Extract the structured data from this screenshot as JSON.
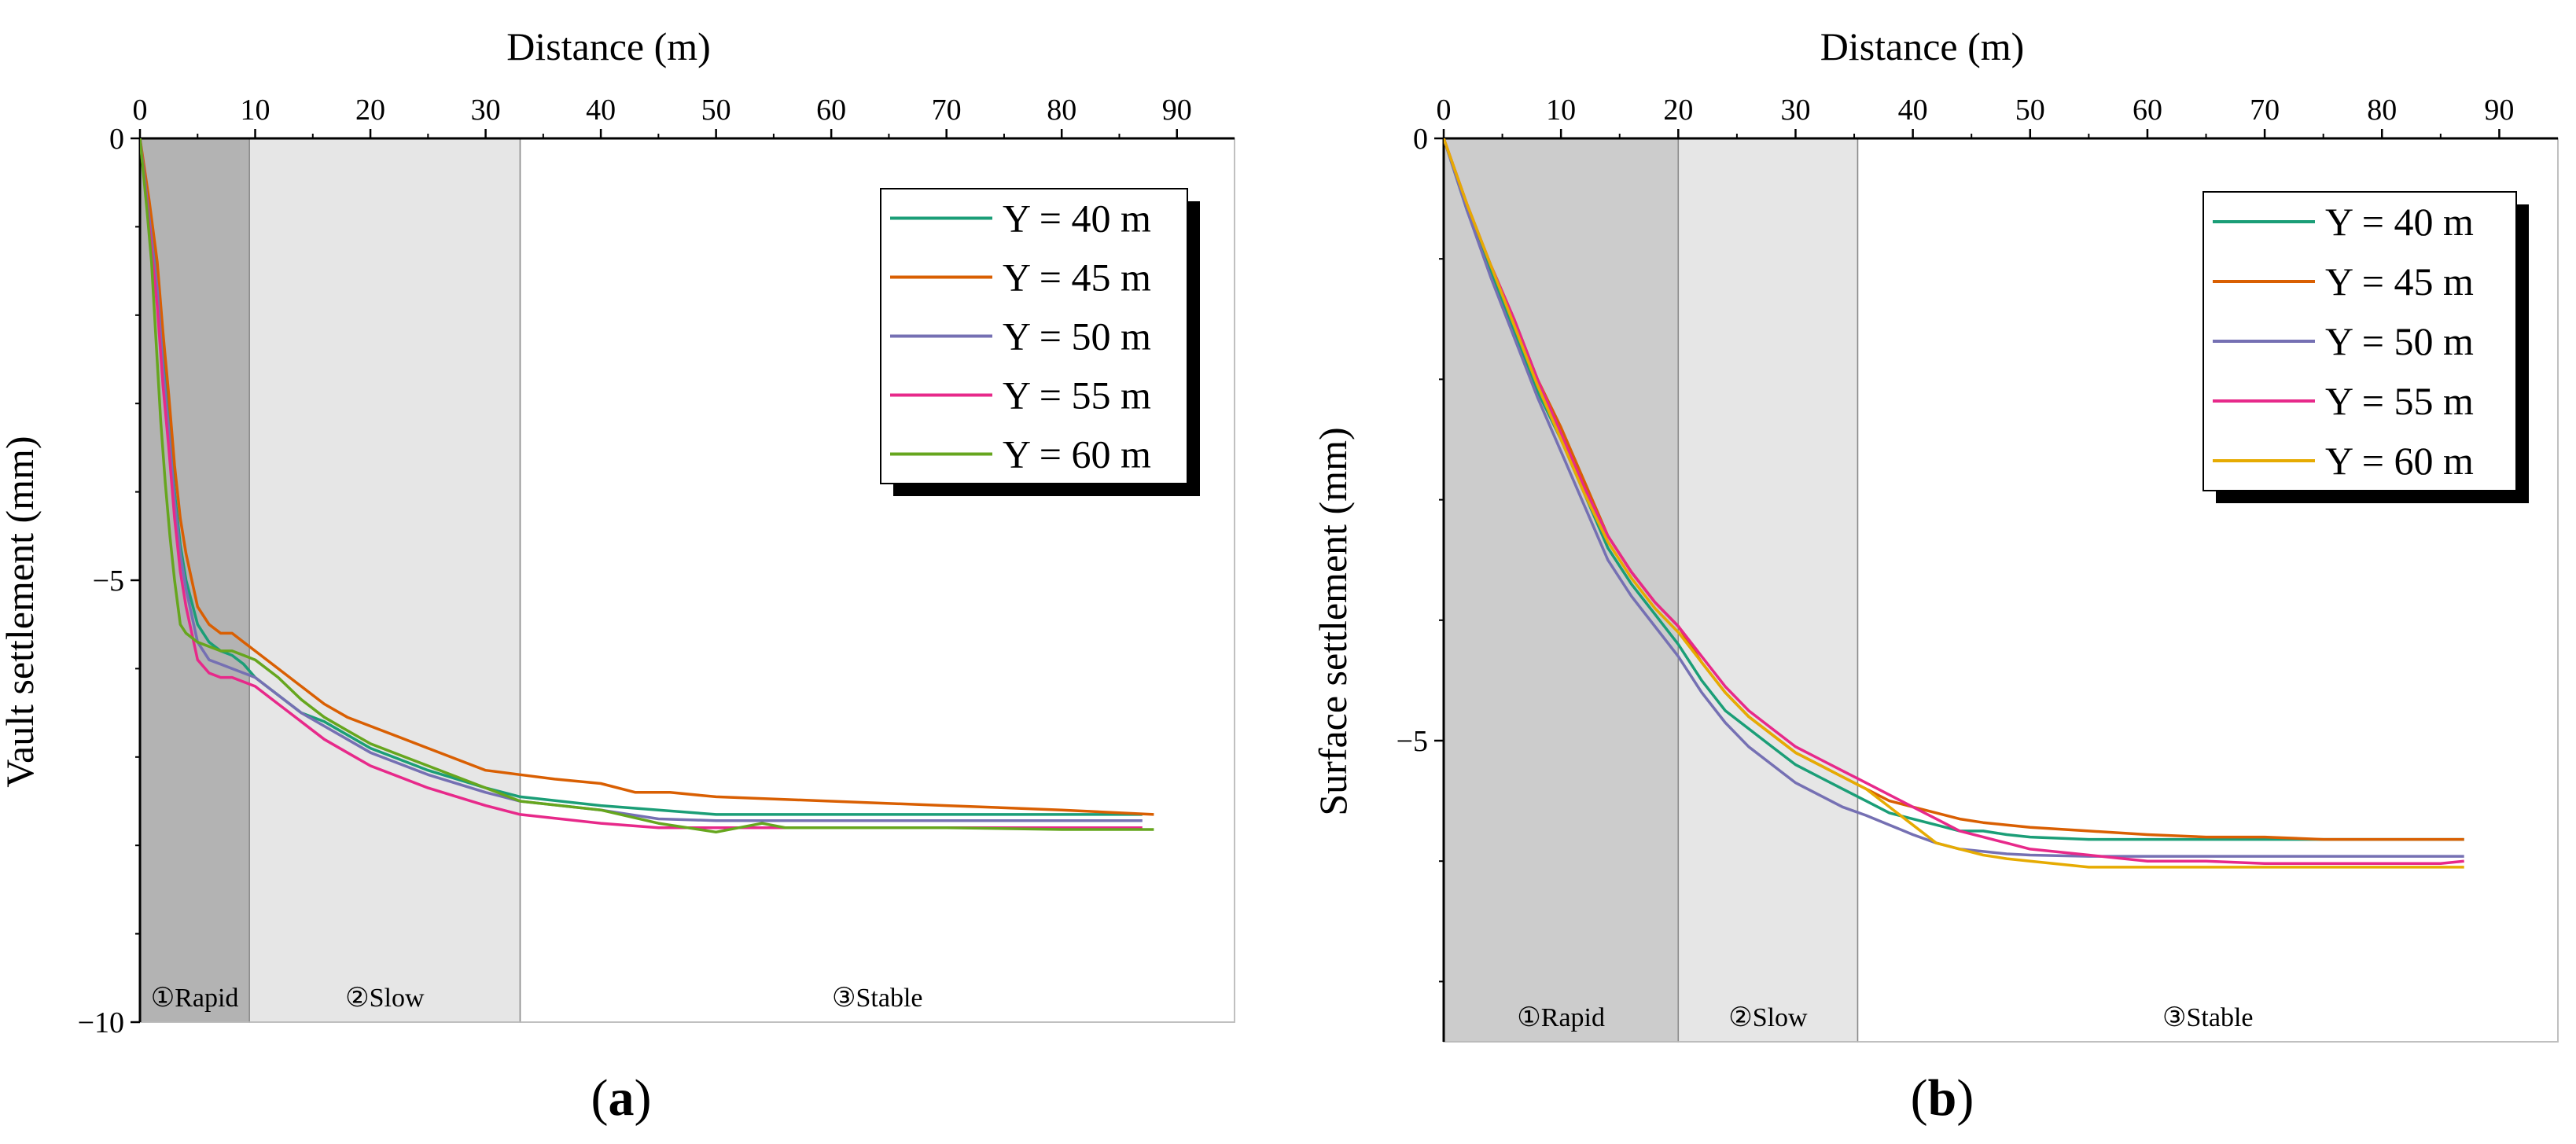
{
  "figure": {
    "panels": [
      {
        "label_text": "(a)",
        "label_letter": "a",
        "zones": [
          {
            "label": "①Rapid",
            "from": 0,
            "to": 9.5,
            "color": "#b3b3b3"
          },
          {
            "label": "②Slow",
            "from": 9.5,
            "to": 33,
            "color": "#e6e6e6"
          },
          {
            "label": "③Stable",
            "from": 33,
            "to": 95,
            "color": "#ffffff"
          }
        ]
      },
      {
        "label_text": "(b)",
        "label_letter": "b",
        "zones": [
          {
            "label": "①Rapid",
            "from": 0,
            "to": 20,
            "color": "#cccccc"
          },
          {
            "label": "②Slow",
            "from": 20,
            "to": 35.3,
            "color": "#e6e6e6"
          },
          {
            "label": "③Stable",
            "from": 35.3,
            "to": 95,
            "color": "#ffffff"
          }
        ]
      }
    ]
  },
  "chart_data": [
    {
      "type": "line",
      "title": "",
      "xlabel": "Distance (m)",
      "ylabel": "Vault settlement (mm)",
      "xlim": [
        0,
        95
      ],
      "ylim": [
        -10,
        0
      ],
      "xticks": [
        0,
        10,
        20,
        30,
        40,
        50,
        60,
        70,
        80,
        90
      ],
      "yticks": [
        0,
        -5,
        -10
      ],
      "ytick_labels": [
        "0",
        "−5",
        "−10"
      ],
      "x_axis_position": "top",
      "legend": "top-right",
      "series": [
        {
          "name": "Y = 40 m",
          "color": "#1b9e77",
          "x": [
            0,
            0.8,
            1.5,
            2.0,
            2.5,
            3.0,
            3.5,
            4.0,
            5.0,
            6.0,
            7.0,
            8.0,
            9.0,
            10,
            12,
            14,
            16,
            18,
            20,
            25,
            30,
            33,
            40,
            45,
            50,
            60,
            70,
            80,
            87
          ],
          "y": [
            0,
            -0.9,
            -1.6,
            -2.5,
            -3.2,
            -4.0,
            -4.6,
            -5.0,
            -5.5,
            -5.7,
            -5.8,
            -5.85,
            -5.95,
            -6.1,
            -6.3,
            -6.5,
            -6.6,
            -6.75,
            -6.9,
            -7.15,
            -7.35,
            -7.45,
            -7.55,
            -7.6,
            -7.65,
            -7.65,
            -7.65,
            -7.65,
            -7.65
          ]
        },
        {
          "name": "Y = 45 m",
          "color": "#d95f02",
          "x": [
            0,
            0.8,
            1.5,
            2.0,
            2.5,
            3.0,
            3.5,
            4.0,
            5.0,
            6.0,
            7.0,
            8.0,
            9.0,
            10,
            12,
            14,
            16,
            18,
            20,
            25,
            30,
            33,
            36,
            40,
            43,
            46,
            50,
            60,
            70,
            80,
            88
          ],
          "y": [
            0,
            -0.7,
            -1.4,
            -2.2,
            -2.9,
            -3.7,
            -4.3,
            -4.7,
            -5.3,
            -5.5,
            -5.6,
            -5.6,
            -5.7,
            -5.8,
            -6.0,
            -6.2,
            -6.4,
            -6.55,
            -6.65,
            -6.9,
            -7.15,
            -7.2,
            -7.25,
            -7.3,
            -7.4,
            -7.4,
            -7.45,
            -7.5,
            -7.55,
            -7.6,
            -7.65
          ]
        },
        {
          "name": "Y = 50 m",
          "color": "#7570b3",
          "x": [
            0,
            0.8,
            1.5,
            2.0,
            2.5,
            3.0,
            3.5,
            4.0,
            5.0,
            6.0,
            7.0,
            8.0,
            9.0,
            10,
            12,
            14,
            16,
            18,
            20,
            25,
            30,
            33,
            40,
            45,
            50,
            60,
            70,
            80,
            87
          ],
          "y": [
            0,
            -0.9,
            -1.7,
            -2.6,
            -3.3,
            -4.1,
            -4.7,
            -5.1,
            -5.7,
            -5.9,
            -5.95,
            -6.0,
            -6.05,
            -6.1,
            -6.3,
            -6.5,
            -6.65,
            -6.8,
            -6.95,
            -7.2,
            -7.4,
            -7.5,
            -7.6,
            -7.7,
            -7.72,
            -7.72,
            -7.72,
            -7.72,
            -7.72
          ]
        },
        {
          "name": "Y = 55 m",
          "color": "#e7298a",
          "x": [
            0,
            0.8,
            1.5,
            2.0,
            2.5,
            3.0,
            3.5,
            4.0,
            5.0,
            6.0,
            7.0,
            8.0,
            9.0,
            10,
            12,
            14,
            16,
            18,
            20,
            25,
            30,
            33,
            40,
            45,
            50,
            60,
            70,
            80,
            87
          ],
          "y": [
            0,
            -1.0,
            -1.9,
            -2.8,
            -3.5,
            -4.3,
            -4.9,
            -5.3,
            -5.9,
            -6.05,
            -6.1,
            -6.1,
            -6.15,
            -6.2,
            -6.4,
            -6.6,
            -6.8,
            -6.95,
            -7.1,
            -7.35,
            -7.55,
            -7.65,
            -7.75,
            -7.8,
            -7.8,
            -7.8,
            -7.8,
            -7.8,
            -7.8
          ]
        },
        {
          "name": "Y = 60 m",
          "color": "#66a61e",
          "x": [
            0,
            0.6,
            1.0,
            1.4,
            1.8,
            2.2,
            2.6,
            3.0,
            3.5,
            4.0,
            5.0,
            6.0,
            7.0,
            8.0,
            9.0,
            10,
            12,
            14,
            16,
            18,
            20,
            25,
            30,
            33,
            40,
            45,
            50,
            52,
            54,
            56,
            60,
            70,
            80,
            88
          ],
          "y": [
            0,
            -0.8,
            -1.4,
            -2.3,
            -3.2,
            -3.9,
            -4.5,
            -5.0,
            -5.5,
            -5.6,
            -5.7,
            -5.75,
            -5.8,
            -5.8,
            -5.85,
            -5.9,
            -6.1,
            -6.35,
            -6.55,
            -6.7,
            -6.85,
            -7.1,
            -7.35,
            -7.5,
            -7.6,
            -7.75,
            -7.85,
            -7.8,
            -7.75,
            -7.8,
            -7.8,
            -7.8,
            -7.82,
            -7.82
          ]
        }
      ]
    },
    {
      "type": "line",
      "title": "",
      "xlabel": "Distance (m)",
      "ylabel": "Surface settlement (mm)",
      "xlim": [
        0,
        95
      ],
      "ylim": [
        -7.5,
        0
      ],
      "xticks": [
        0,
        10,
        20,
        30,
        40,
        50,
        60,
        70,
        80,
        90
      ],
      "yticks": [
        0,
        -5
      ],
      "ytick_labels": [
        "0",
        "−5"
      ],
      "x_axis_position": "top",
      "legend": "top-right",
      "series": [
        {
          "name": "Y = 40 m",
          "color": "#1b9e77",
          "x": [
            0,
            2,
            4,
            6,
            8,
            10,
            12,
            14,
            16,
            18,
            20,
            22,
            24,
            26,
            28,
            30,
            32,
            34,
            36,
            38,
            40,
            42,
            44,
            46,
            48,
            50,
            55,
            60,
            65,
            70,
            75,
            80,
            85,
            87
          ],
          "y": [
            0,
            -0.6,
            -1.1,
            -1.6,
            -2.1,
            -2.5,
            -2.95,
            -3.4,
            -3.7,
            -3.95,
            -4.2,
            -4.5,
            -4.75,
            -4.9,
            -5.05,
            -5.2,
            -5.3,
            -5.4,
            -5.5,
            -5.6,
            -5.65,
            -5.7,
            -5.75,
            -5.75,
            -5.78,
            -5.8,
            -5.82,
            -5.82,
            -5.82,
            -5.82,
            -5.82,
            -5.82,
            -5.82,
            -5.82
          ]
        },
        {
          "name": "Y = 45 m",
          "color": "#d95f02",
          "x": [
            0,
            2,
            4,
            6,
            8,
            10,
            12,
            14,
            16,
            18,
            20,
            22,
            24,
            26,
            28,
            30,
            32,
            34,
            36,
            38,
            40,
            42,
            44,
            46,
            48,
            50,
            55,
            60,
            65,
            70,
            75,
            80,
            85,
            87
          ],
          "y": [
            0,
            -0.55,
            -1.05,
            -1.5,
            -2.0,
            -2.4,
            -2.85,
            -3.3,
            -3.6,
            -3.85,
            -4.05,
            -4.35,
            -4.6,
            -4.8,
            -4.95,
            -5.1,
            -5.2,
            -5.3,
            -5.4,
            -5.5,
            -5.55,
            -5.6,
            -5.65,
            -5.68,
            -5.7,
            -5.72,
            -5.75,
            -5.78,
            -5.8,
            -5.8,
            -5.82,
            -5.82,
            -5.82,
            -5.82
          ]
        },
        {
          "name": "Y = 50 m",
          "color": "#7570b3",
          "x": [
            0,
            2,
            4,
            6,
            8,
            10,
            12,
            14,
            16,
            18,
            20,
            22,
            24,
            26,
            28,
            30,
            32,
            34,
            36,
            38,
            40,
            42,
            44,
            46,
            48,
            50,
            55,
            60,
            65,
            70,
            75,
            80,
            85,
            87
          ],
          "y": [
            0,
            -0.6,
            -1.15,
            -1.65,
            -2.15,
            -2.6,
            -3.05,
            -3.5,
            -3.8,
            -4.05,
            -4.3,
            -4.6,
            -4.85,
            -5.05,
            -5.2,
            -5.35,
            -5.45,
            -5.55,
            -5.62,
            -5.7,
            -5.78,
            -5.85,
            -5.9,
            -5.92,
            -5.94,
            -5.95,
            -5.96,
            -5.96,
            -5.96,
            -5.96,
            -5.96,
            -5.96,
            -5.96,
            -5.96
          ]
        },
        {
          "name": "Y = 55 m",
          "color": "#e7298a",
          "x": [
            0,
            2,
            4,
            6,
            8,
            10,
            12,
            14,
            16,
            18,
            20,
            22,
            24,
            26,
            28,
            30,
            32,
            34,
            36,
            38,
            40,
            42,
            44,
            46,
            48,
            50,
            55,
            60,
            65,
            70,
            75,
            80,
            85,
            87
          ],
          "y": [
            0,
            -0.55,
            -1.05,
            -1.5,
            -2.0,
            -2.45,
            -2.9,
            -3.3,
            -3.6,
            -3.85,
            -4.05,
            -4.3,
            -4.55,
            -4.75,
            -4.9,
            -5.05,
            -5.15,
            -5.25,
            -5.35,
            -5.45,
            -5.55,
            -5.65,
            -5.75,
            -5.8,
            -5.85,
            -5.9,
            -5.95,
            -6.0,
            -6.0,
            -6.02,
            -6.02,
            -6.02,
            -6.02,
            -6.0
          ]
        },
        {
          "name": "Y = 60 m",
          "color": "#e6ab02",
          "x": [
            0,
            2,
            4,
            6,
            8,
            10,
            12,
            14,
            16,
            18,
            20,
            22,
            24,
            26,
            28,
            30,
            32,
            34,
            36,
            38,
            40,
            42,
            44,
            46,
            48,
            50,
            55,
            60,
            65,
            70,
            75,
            80,
            85,
            87
          ],
          "y": [
            0,
            -0.55,
            -1.05,
            -1.55,
            -2.05,
            -2.5,
            -2.95,
            -3.35,
            -3.65,
            -3.9,
            -4.1,
            -4.35,
            -4.6,
            -4.8,
            -4.95,
            -5.1,
            -5.2,
            -5.3,
            -5.4,
            -5.55,
            -5.7,
            -5.85,
            -5.9,
            -5.95,
            -5.98,
            -6.0,
            -6.05,
            -6.05,
            -6.05,
            -6.05,
            -6.05,
            -6.05,
            -6.05,
            -6.05
          ]
        }
      ]
    }
  ]
}
